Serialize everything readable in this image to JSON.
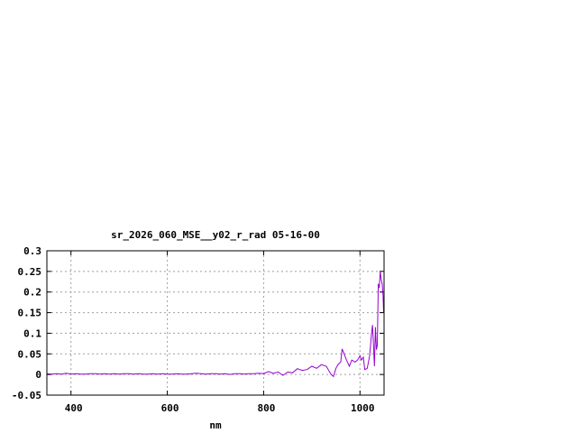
{
  "chart_data": {
    "type": "line",
    "title": "sr_2026_060_MSE__y02_r_rad 05-16-00",
    "xlabel": "nm",
    "ylabel": "",
    "xlim": [
      350,
      1050
    ],
    "ylim": [
      -0.05,
      0.3
    ],
    "xticks": [
      400,
      600,
      800,
      1000
    ],
    "yticks": [
      -0.05,
      0,
      0.05,
      0.1,
      0.15,
      0.2,
      0.25,
      0.3
    ],
    "ytick_labels": [
      "-0.05",
      "0",
      "0.05",
      "0.1",
      "0.15",
      "0.2",
      "0.25",
      "0.3"
    ],
    "grid": true,
    "line_color": "#9400d3",
    "series": [
      {
        "x": [
          350,
          360,
          370,
          380,
          390,
          400,
          410,
          420,
          430,
          440,
          450,
          460,
          470,
          480,
          490,
          500,
          510,
          520,
          530,
          540,
          550,
          560,
          570,
          580,
          590,
          600,
          610,
          620,
          630,
          640,
          650,
          660,
          670,
          680,
          690,
          700,
          710,
          720,
          730,
          740,
          750,
          760,
          770,
          780,
          790,
          800,
          810,
          820,
          830,
          840,
          850,
          860,
          870,
          880,
          890,
          900,
          910,
          920,
          930,
          940,
          945,
          950,
          955,
          960,
          963,
          967,
          972,
          978,
          983,
          990,
          995,
          1000,
          1003,
          1007,
          1010,
          1015,
          1020,
          1024,
          1026,
          1028,
          1030,
          1032,
          1034,
          1036,
          1038,
          1040,
          1042,
          1044,
          1046,
          1048,
          1049
        ],
        "y": [
          0.002,
          0.001,
          0.002,
          0.001,
          0.003,
          0.001,
          0.002,
          0.001,
          0.001,
          0.002,
          0.002,
          0.001,
          0.002,
          0.001,
          0.002,
          0.001,
          0.002,
          0.002,
          0.001,
          0.002,
          0.001,
          0.001,
          0.002,
          0.001,
          0.002,
          0.001,
          0.001,
          0.002,
          0.001,
          0.001,
          0.002,
          0.003,
          0.002,
          0.001,
          0.002,
          0.002,
          0.001,
          0.002,
          0.0,
          0.002,
          0.002,
          0.001,
          0.002,
          0.002,
          0.003,
          0.002,
          0.007,
          0.003,
          0.006,
          -0.002,
          0.006,
          0.004,
          0.014,
          0.01,
          0.012,
          0.02,
          0.015,
          0.024,
          0.02,
          0.0,
          -0.005,
          0.015,
          0.025,
          0.03,
          0.062,
          0.05,
          0.035,
          0.02,
          0.035,
          0.03,
          0.035,
          0.045,
          0.035,
          0.042,
          0.012,
          0.015,
          0.045,
          0.1,
          0.12,
          0.075,
          0.02,
          0.115,
          0.06,
          0.07,
          0.22,
          0.21,
          0.25,
          0.23,
          0.22,
          0.19,
          0.15
        ]
      }
    ]
  }
}
